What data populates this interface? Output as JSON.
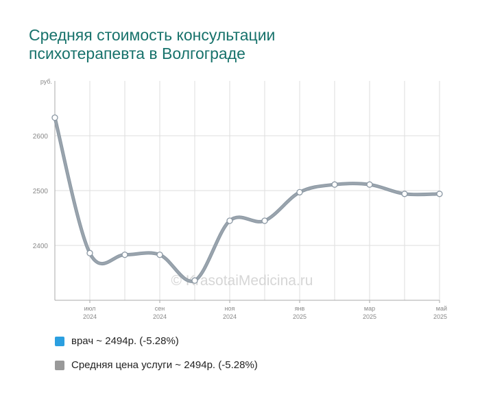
{
  "title_lines": [
    "Средняя стоимость консультации",
    "психотерапевта в Волгограде"
  ],
  "watermark": "© KrasotaiMedicina.ru",
  "chart_data": {
    "type": "line",
    "ylabel": "руб.",
    "ylim": [
      2300,
      2700
    ],
    "yticks": [
      2400,
      2500,
      2600
    ],
    "x_tick_labels": [
      {
        "month": "июл",
        "year": "2024"
      },
      {
        "month": "сен",
        "year": "2024"
      },
      {
        "month": "ноя",
        "year": "2024"
      },
      {
        "month": "янв",
        "year": "2025"
      },
      {
        "month": "мар",
        "year": "2025"
      },
      {
        "month": "май",
        "year": "2025"
      }
    ],
    "x": [
      "2024-06",
      "2024-07",
      "2024-08",
      "2024-09",
      "2024-10",
      "2024-11",
      "2024-12",
      "2025-01",
      "2025-02",
      "2025-03",
      "2025-04",
      "2025-05"
    ],
    "series": [
      {
        "name": "врач",
        "color": "#2b9fe0",
        "values": [
          2633,
          2386,
          2383,
          2383,
          2336,
          2445,
          2445,
          2497,
          2511,
          2511,
          2494,
          2494
        ]
      },
      {
        "name": "Средняя цена услуги",
        "color": "#999999",
        "values": [
          2633,
          2386,
          2383,
          2383,
          2336,
          2445,
          2445,
          2497,
          2511,
          2511,
          2494,
          2494
        ]
      }
    ],
    "grid": true
  },
  "legend": [
    {
      "label": "врач ~ 2494р. (-5.28%)",
      "color": "#2b9fe0"
    },
    {
      "label": "Средняя цена услуги ~ 2494р. (-5.28%)",
      "color": "#999999"
    }
  ]
}
